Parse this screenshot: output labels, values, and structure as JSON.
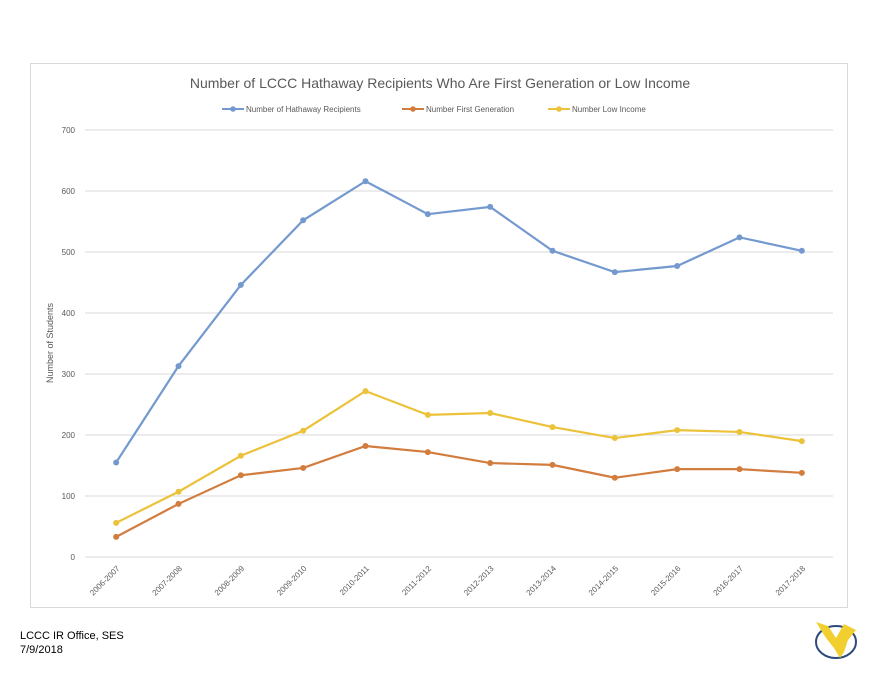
{
  "chart_data": {
    "type": "line",
    "title": "Number of LCCC Hathaway Recipients Who Are First Generation or Low Income",
    "xlabel": "",
    "ylabel": "Number of Students",
    "ylim": [
      0,
      700
    ],
    "yticks": [
      0,
      100,
      200,
      300,
      400,
      500,
      600,
      700
    ],
    "grid": true,
    "legend": "top-center",
    "categories": [
      "2006-2007",
      "2007-2008",
      "2008-2009",
      "2009-2010",
      "2010-2011",
      "2011-2012",
      "2012-2013",
      "2013-2014",
      "2014-2015",
      "2015-2016",
      "2016-2017",
      "2017-2018"
    ],
    "series": [
      {
        "name": "Number of Hathaway Recipients",
        "color": "#7399cf",
        "values": [
          155,
          313,
          446,
          552,
          616,
          562,
          574,
          502,
          467,
          477,
          524,
          502
        ]
      },
      {
        "name": "Number First Generation",
        "color": "#d27c3e",
        "values": [
          33,
          87,
          134,
          146,
          182,
          172,
          154,
          151,
          130,
          144,
          144,
          138
        ]
      },
      {
        "name": "Number Low Income",
        "color": "#ecc23a",
        "values": [
          56,
          107,
          166,
          207,
          272,
          233,
          236,
          213,
          195,
          208,
          205,
          190
        ]
      }
    ]
  },
  "footer": {
    "office": "LCCC IR Office, SES",
    "date": "7/9/2018"
  }
}
